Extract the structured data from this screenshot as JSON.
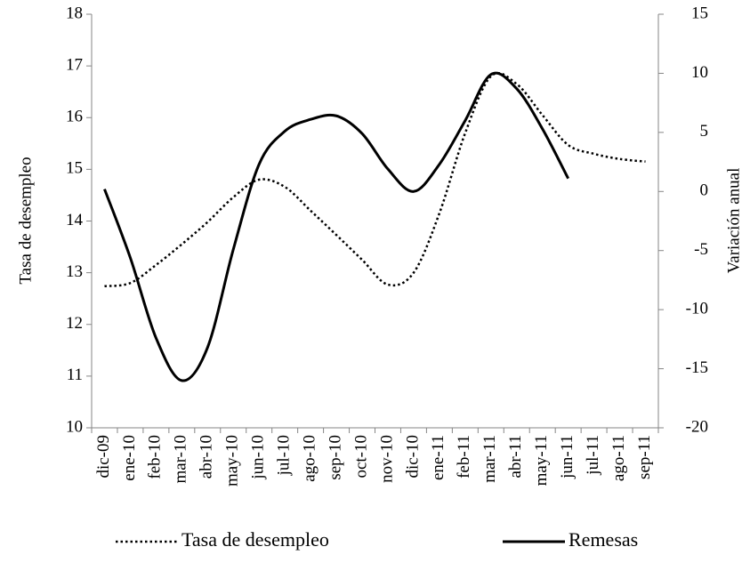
{
  "chart_data": {
    "type": "line",
    "y_label": "Tasa de desempleo",
    "y2_label": "Variación  anual",
    "categories": [
      "dic-09",
      "ene-10",
      "feb-10",
      "mar-10",
      "abr-10",
      "may-10",
      "jun-10",
      "jul-10",
      "ago-10",
      "sep-10",
      "oct-10",
      "nov-10",
      "dic-10",
      "ene-11",
      "feb-11",
      "mar-11",
      "abr-11",
      "may-11",
      "jun-11",
      "jul-11",
      "ago-11",
      "sep-11"
    ],
    "series": [
      {
        "name": "Tasa de desempleo",
        "color": "#000000",
        "dash": "dotted",
        "axis": "y",
        "values": [
          12.74,
          12.8,
          13.15,
          13.55,
          13.98,
          14.46,
          14.8,
          14.66,
          14.2,
          13.73,
          13.25,
          12.77,
          13.0,
          14.15,
          15.7,
          16.8,
          16.65,
          16.05,
          15.47,
          15.3,
          15.2,
          15.15
        ]
      },
      {
        "name": "Remesas",
        "color": "#000000",
        "dash": "solid",
        "axis": "y2",
        "values": [
          0.2,
          -5.6,
          -12.4,
          -16,
          -13.2,
          -4.9,
          2.3,
          5.1,
          6.1,
          6.4,
          4.9,
          1.9,
          0.0,
          2.3,
          6.0,
          9.9,
          8.7,
          5.3,
          1.1,
          null,
          null,
          null
        ]
      }
    ],
    "ylim": [
      10,
      18
    ],
    "yticks": [
      10,
      11,
      12,
      13,
      14,
      15,
      16,
      17,
      18
    ],
    "y2lim": [
      -20,
      15
    ],
    "y2ticks": [
      -20,
      -15,
      -10,
      -5,
      0,
      5,
      10,
      15
    ],
    "grid": false,
    "legend": "bottom"
  }
}
